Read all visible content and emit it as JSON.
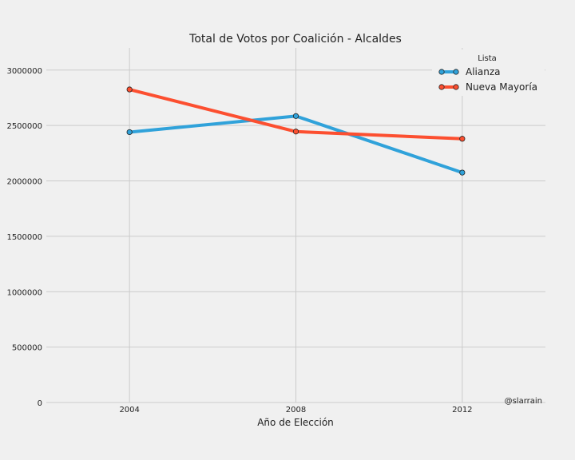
{
  "chart_data": {
    "type": "line",
    "title": "Total de Votos por Coalición - Alcaldes",
    "xlabel": "Año de Elección",
    "ylabel": "",
    "x": [
      2004,
      2008,
      2012
    ],
    "x_ticks": [
      "2004",
      "2008",
      "2012"
    ],
    "xlim": [
      2002,
      2014
    ],
    "ylim": [
      0,
      3200000
    ],
    "y_ticks": [
      "0",
      "500000",
      "1000000",
      "1500000",
      "2000000",
      "2500000",
      "3000000"
    ],
    "y_tick_values": [
      0,
      500000,
      1000000,
      1500000,
      2000000,
      2500000,
      3000000
    ],
    "grid": true,
    "legend": {
      "title": "Lista",
      "placement": "top-right"
    },
    "series": [
      {
        "name": "Alianza",
        "color": "#30a2da",
        "values": [
          2440000,
          2585000,
          2075000
        ]
      },
      {
        "name": "Nueva Mayoría",
        "color": "#fc4f30",
        "values": [
          2825000,
          2445000,
          2380000
        ]
      }
    ],
    "credit": "@slarrain"
  }
}
